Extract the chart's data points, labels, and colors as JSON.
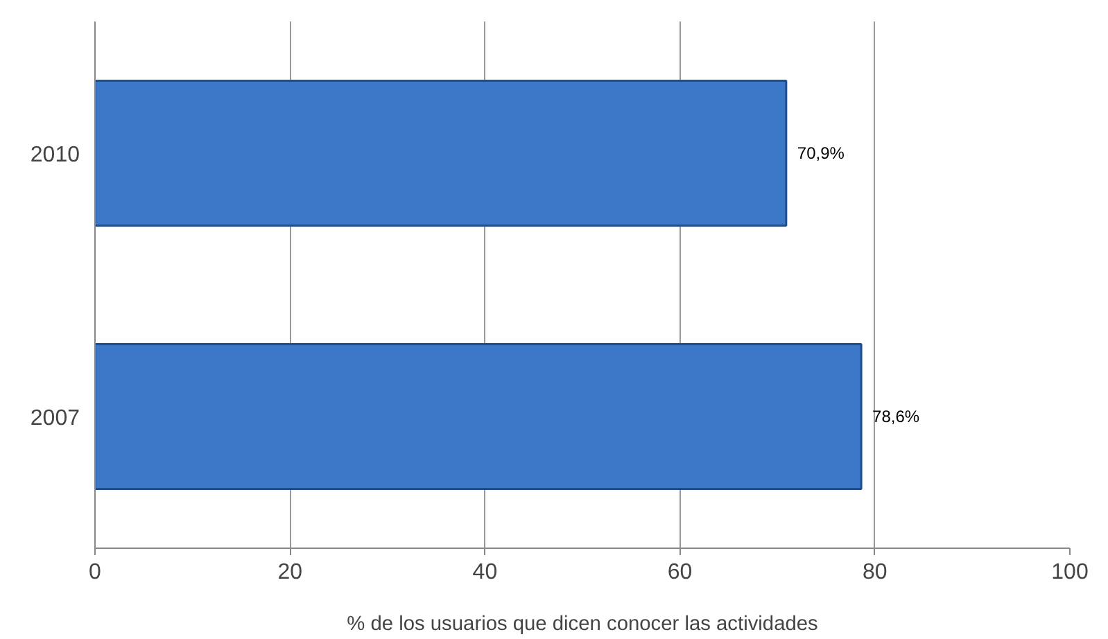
{
  "chart_data": {
    "type": "bar",
    "orientation": "horizontal",
    "categories": [
      "2010",
      "2007"
    ],
    "values": [
      70.9,
      78.6
    ],
    "value_labels": [
      "70,9%",
      "78,6%"
    ],
    "color": "#3d78c8",
    "xlabel": "% de los usuarios que dicen conocer las actividades",
    "xlim": [
      0,
      100
    ],
    "xticks": [
      0,
      20,
      40,
      60,
      80,
      100
    ],
    "grid": "x"
  }
}
